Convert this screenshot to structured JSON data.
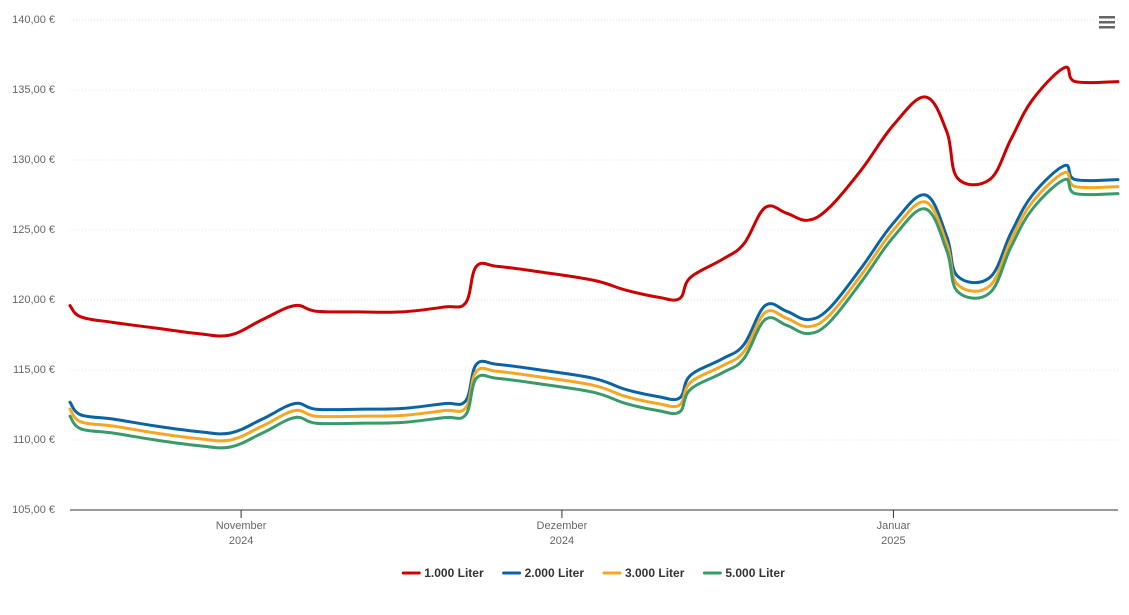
{
  "chart_data": {
    "type": "line",
    "x": [
      1,
      2,
      5,
      9,
      13,
      16,
      19,
      22,
      24,
      28,
      32,
      36,
      38,
      39,
      41,
      45,
      50,
      53,
      56,
      58,
      59,
      62,
      64,
      66,
      68,
      70,
      72,
      75,
      78,
      81,
      83,
      84,
      87,
      89,
      91,
      94,
      95,
      99
    ],
    "series": [
      {
        "name": "1.000 Liter",
        "color": "#cc0000",
        "values": [
          119.6,
          118.8,
          118.4,
          118.0,
          117.6,
          117.5,
          118.6,
          119.6,
          119.2,
          119.15,
          119.15,
          119.5,
          119.8,
          122.4,
          122.4,
          122.0,
          121.4,
          120.7,
          120.2,
          120.1,
          121.6,
          122.9,
          124.0,
          126.6,
          126.2,
          125.7,
          126.6,
          129.3,
          132.5,
          134.5,
          132.0,
          128.7,
          128.6,
          131.5,
          134.3,
          136.6,
          135.6,
          135.6
        ]
      },
      {
        "name": "2.000 Liter",
        "color": "#0a64a4",
        "values": [
          112.7,
          111.8,
          111.5,
          111.0,
          110.6,
          110.5,
          111.5,
          112.6,
          112.2,
          112.2,
          112.25,
          112.6,
          112.8,
          115.4,
          115.4,
          115.0,
          114.4,
          113.6,
          113.1,
          113.0,
          114.6,
          115.8,
          116.8,
          119.6,
          119.2,
          118.6,
          119.4,
          122.3,
          125.5,
          127.5,
          124.5,
          121.7,
          121.6,
          124.8,
          127.5,
          129.6,
          128.6,
          128.6
        ]
      },
      {
        "name": "3.000 Liter",
        "color": "#f5a623",
        "values": [
          112.2,
          111.3,
          111.0,
          110.5,
          110.1,
          110.0,
          111.0,
          112.1,
          111.7,
          111.7,
          111.75,
          112.1,
          112.3,
          114.9,
          114.9,
          114.5,
          113.9,
          113.1,
          112.6,
          112.5,
          114.1,
          115.3,
          116.3,
          119.1,
          118.7,
          118.1,
          118.9,
          121.8,
          125.0,
          127.0,
          124.0,
          121.1,
          121.0,
          124.3,
          127.0,
          129.1,
          128.1,
          128.1
        ]
      },
      {
        "name": "5.000 Liter",
        "color": "#3a9a6a",
        "values": [
          111.7,
          110.8,
          110.5,
          110.0,
          109.6,
          109.5,
          110.5,
          111.6,
          111.2,
          111.2,
          111.25,
          111.6,
          111.8,
          114.4,
          114.4,
          114.0,
          113.4,
          112.6,
          112.1,
          112.0,
          113.6,
          114.8,
          115.8,
          118.6,
          118.2,
          117.6,
          118.4,
          121.3,
          124.5,
          126.5,
          123.5,
          120.6,
          120.5,
          123.8,
          126.5,
          128.6,
          127.6,
          127.6
        ]
      }
    ],
    "xlim": [
      1,
      99
    ],
    "xticks": [
      {
        "value": 17,
        "label": "November 2024"
      },
      {
        "value": 47,
        "label": "Dezember 2024"
      },
      {
        "value": 78,
        "label": "Januar 2025"
      }
    ],
    "ylim": [
      105,
      140
    ],
    "yticks": [
      {
        "value": 105,
        "label": "105,00 €"
      },
      {
        "value": 110,
        "label": "110,00 €"
      },
      {
        "value": 115,
        "label": "115,00 €"
      },
      {
        "value": 120,
        "label": "120,00 €"
      },
      {
        "value": 125,
        "label": "125,00 €"
      },
      {
        "value": 130,
        "label": "130,00 €"
      },
      {
        "value": 135,
        "label": "135,00 €"
      },
      {
        "value": 140,
        "label": "140,00 €"
      }
    ],
    "grid": true,
    "legend": "bottom"
  }
}
